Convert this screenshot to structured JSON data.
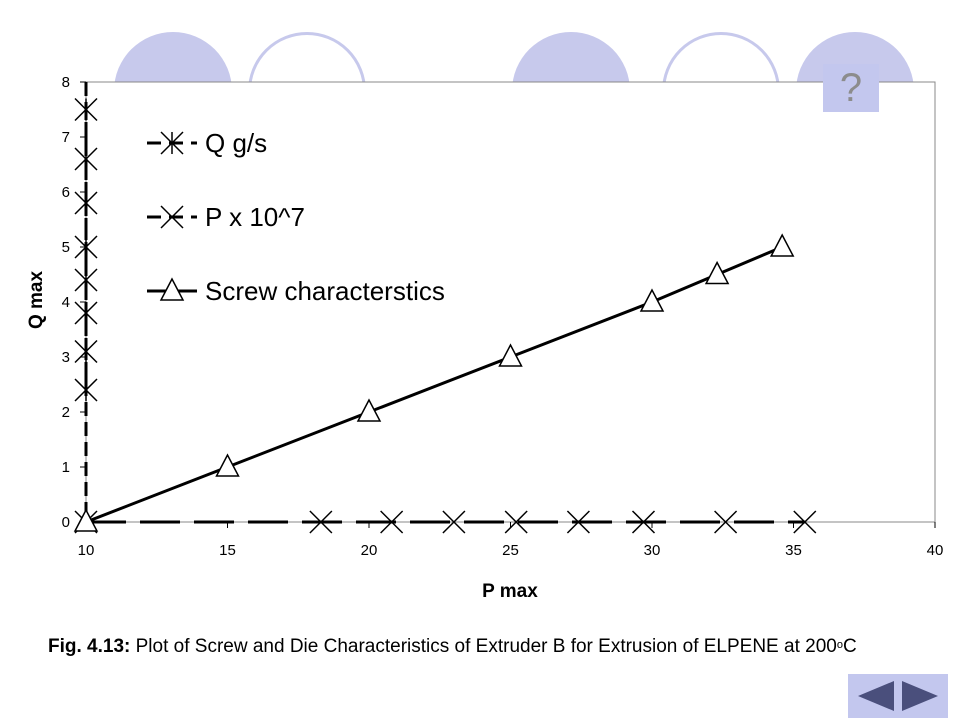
{
  "chart_data": {
    "type": "line",
    "xlabel": "P max",
    "ylabel": "Q max",
    "xlim": [
      10,
      40
    ],
    "ylim": [
      0,
      8
    ],
    "x_ticks": [
      "10",
      "15",
      "20",
      "25",
      "30",
      "35",
      "40"
    ],
    "y_ticks": [
      "0",
      "1",
      "2",
      "3",
      "4",
      "5",
      "6",
      "7",
      "8"
    ],
    "grid": false,
    "legend_position": "top-left",
    "series": [
      {
        "name": "Q g/s",
        "marker": "asterisk",
        "x": [
          10,
          10,
          10,
          10,
          10,
          10,
          10,
          10
        ],
        "y": [
          2.4,
          3.1,
          3.8,
          4.4,
          5.0,
          5.8,
          6.6,
          7.5
        ]
      },
      {
        "name": "P x 10^7",
        "marker": "x",
        "x": [
          10,
          18.3,
          20.8,
          23,
          25.2,
          27.4,
          29.7,
          32.6,
          35.4
        ],
        "y": [
          0,
          0,
          0,
          0,
          0,
          0,
          0,
          0,
          0
        ]
      },
      {
        "name": "Screw characterstics",
        "marker": "triangle",
        "x": [
          10,
          15,
          20,
          25,
          30,
          32.3,
          34.6
        ],
        "y": [
          0,
          1,
          2,
          3,
          4,
          4.5,
          5
        ]
      }
    ]
  },
  "help_button": {
    "label": "?"
  },
  "caption": {
    "bold_part": "Fig. 4.13:",
    "text": " Plot of Screw and Die Characteristics of Extruder B for Extrusion of ELPENE at 200",
    "superscript": "o",
    "suffix": "C"
  },
  "navigation": {
    "back_icon": "left-triangle",
    "forward_icon": "right-triangle"
  },
  "colors": {
    "decoration": "#c7c9ec",
    "button": "#c3c7ee",
    "nav_arrow": "#4a4f7c"
  }
}
